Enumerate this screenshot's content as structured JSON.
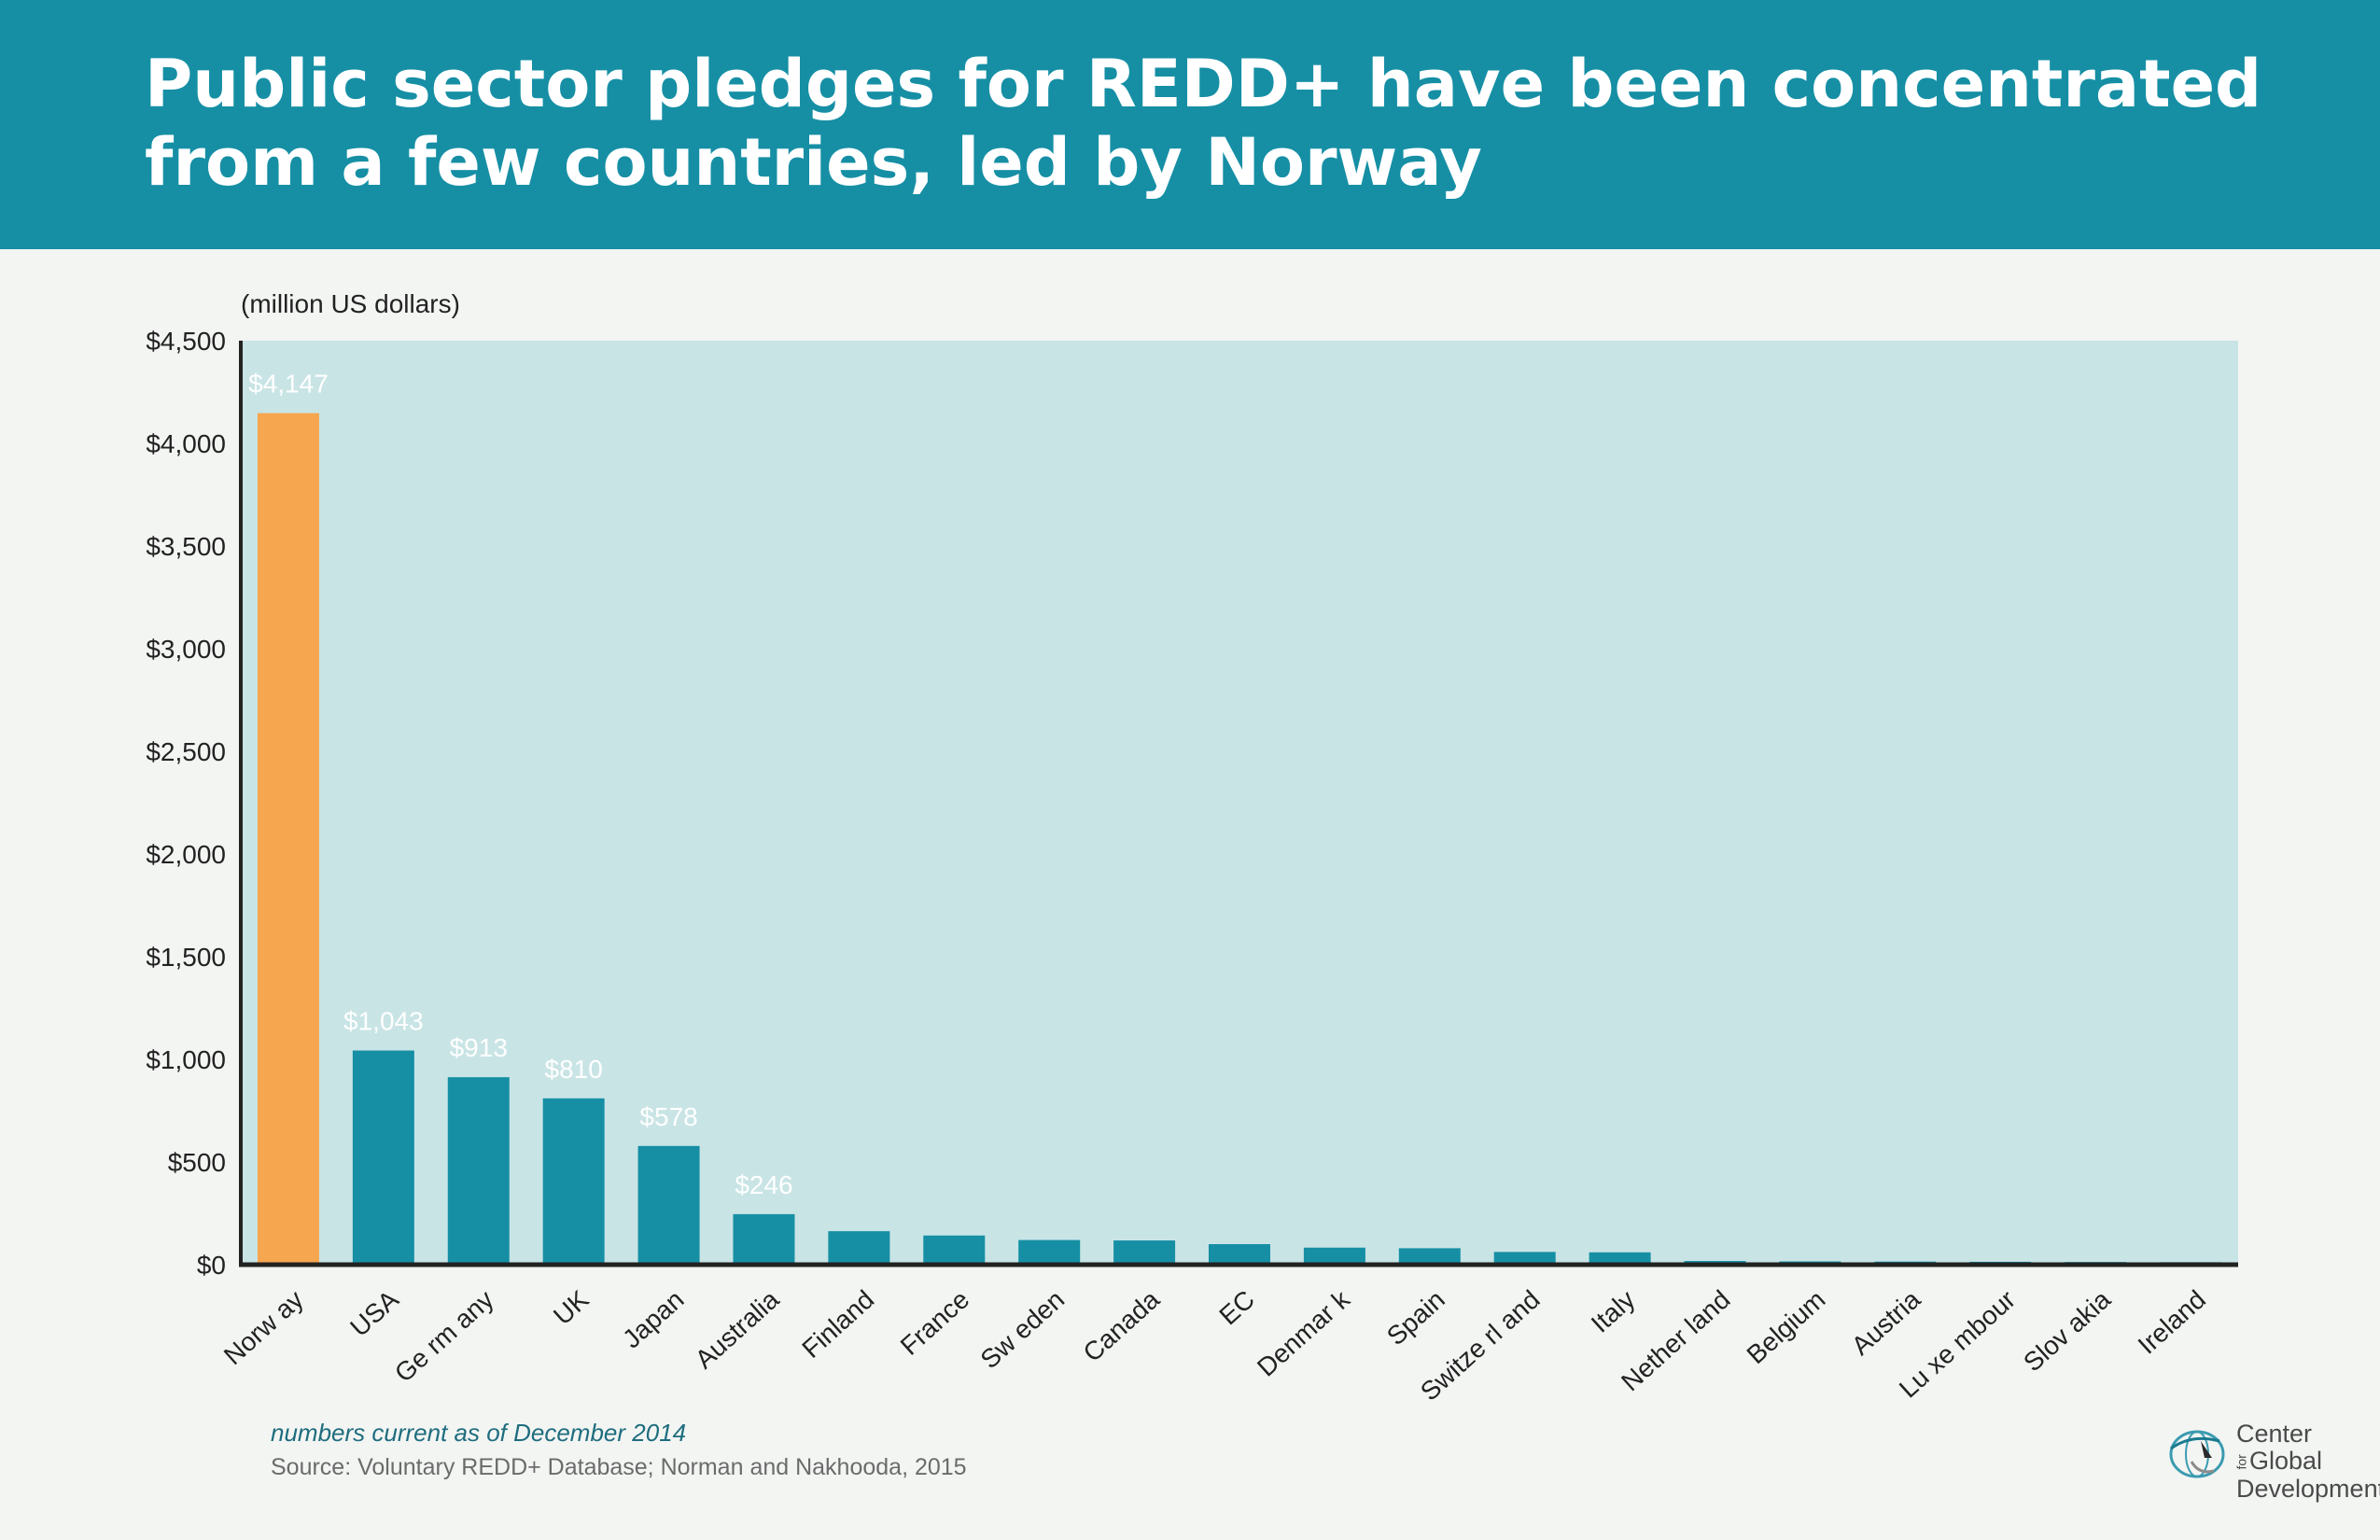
{
  "header": {
    "title": "Public sector pledges for REDD+ have been concentrated from a few countries, led by Norway"
  },
  "chart_data": {
    "type": "bar",
    "title": "Public sector pledges for REDD+ have been concentrated from a few countries, led by Norway",
    "ylabel": "(million US dollars)",
    "xlabel": "",
    "ylim": [
      0,
      4500
    ],
    "yticks": [
      "$0",
      "$500",
      "$1,000",
      "$1,500",
      "$2,000",
      "$2,500",
      "$3,000",
      "$3,500",
      "$4,000",
      "$4,500"
    ],
    "categories": [
      "Norw ay",
      "USA",
      "Ge rm any",
      "UK",
      "Japan",
      "Australia",
      "Finland",
      "France",
      "Sw eden",
      "Canada",
      "EC",
      "Denmar  k",
      "Spain",
      "Switze  rl and",
      "Italy",
      "Nether  land",
      "Belgium",
      "Austria",
      "Lu xe mbour",
      "Slov akia",
      "Ireland"
    ],
    "values": [
      4147,
      1043,
      913,
      810,
      578,
      246,
      163,
      142,
      120,
      118,
      100,
      83,
      80,
      62,
      60,
      18,
      16,
      15,
      14,
      13,
      12
    ],
    "data_labels": [
      "$4,147",
      "$1,043",
      "$913",
      "$810",
      "$578",
      "$246",
      "",
      "",
      "",
      "",
      "",
      "",
      "",
      "",
      "",
      "",
      "",
      "",
      "",
      "",
      ""
    ],
    "highlight_index": 0,
    "grid": false,
    "legend": "none"
  },
  "colors": {
    "header_bg": "#168fa5",
    "page_bg": "#f3f5f3",
    "plot_bg": "#c9e4e5",
    "bar": "#168fa5",
    "bar_highlight": "#f5a64f",
    "axis": "#222222",
    "data_label": "#ffffff"
  },
  "footer": {
    "note": "numbers current as of December 2014",
    "source": "Source: Voluntary REDD+ Database; Norman and Nakhooda, 2015"
  },
  "logo": {
    "line1": "Center",
    "for": "for",
    "line2": "Global",
    "line3": "Development",
    "icon": "globe-bird-icon"
  }
}
